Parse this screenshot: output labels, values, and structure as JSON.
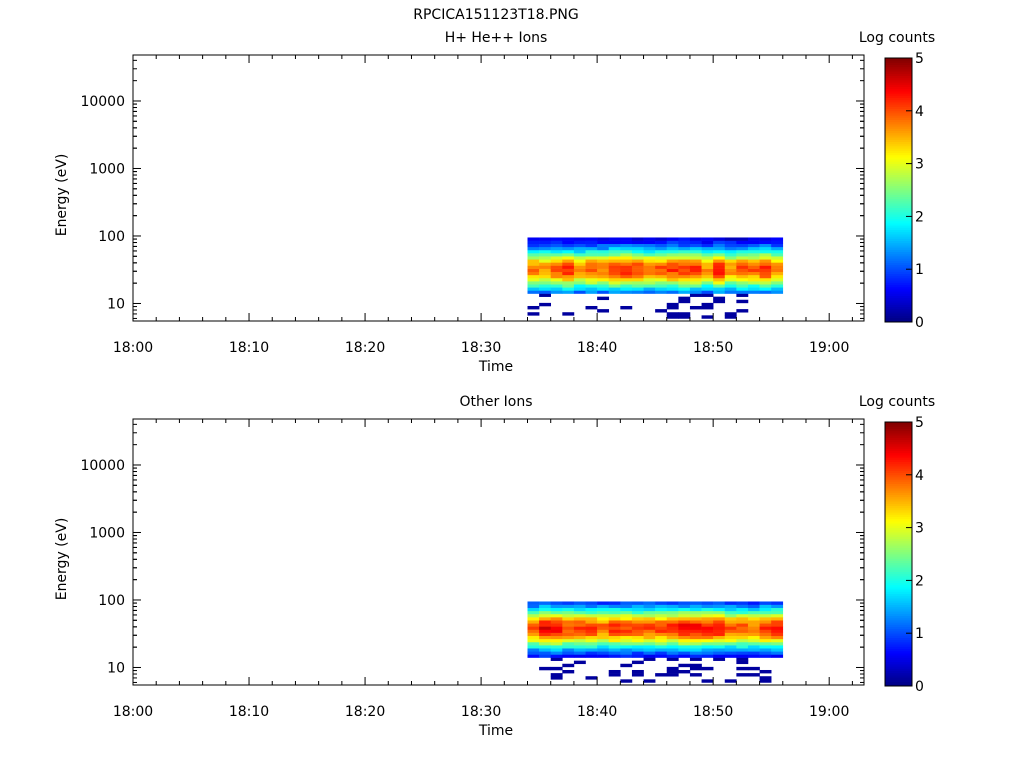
{
  "filename": "RPCICA151123T18.PNG",
  "chart_data": [
    {
      "type": "heatmap",
      "title": "H+ He++ Ions",
      "xlabel": "Time",
      "ylabel": "Energy (eV)",
      "y_scale": "log",
      "xlim": [
        "18:00",
        "19:03"
      ],
      "ylim": [
        5.5,
        48000
      ],
      "x_ticks": [
        "18:00",
        "18:10",
        "18:20",
        "18:30",
        "18:40",
        "18:50",
        "19:00"
      ],
      "y_ticks": [
        "10",
        "100",
        "1000",
        "10000"
      ],
      "colorbar": {
        "label": "Log counts",
        "range": [
          0,
          5
        ],
        "ticks": [
          "0",
          "1",
          "2",
          "3",
          "4",
          "5"
        ]
      },
      "data_extent": {
        "time_start": "18:34",
        "time_end": "18:56",
        "energy_min_eV": 6,
        "energy_max_eV": 95
      },
      "peak": {
        "energy_eV": 32,
        "log_counts": 4.3
      }
    },
    {
      "type": "heatmap",
      "title": "Other Ions",
      "xlabel": "Time",
      "ylabel": "Energy (eV)",
      "y_scale": "log",
      "xlim": [
        "18:00",
        "19:03"
      ],
      "ylim": [
        5.5,
        48000
      ],
      "x_ticks": [
        "18:00",
        "18:10",
        "18:20",
        "18:30",
        "18:40",
        "18:50",
        "19:00"
      ],
      "y_ticks": [
        "10",
        "100",
        "1000",
        "10000"
      ],
      "colorbar": {
        "label": "Log counts",
        "range": [
          0,
          5
        ],
        "ticks": [
          "0",
          "1",
          "2",
          "3",
          "4",
          "5"
        ]
      },
      "data_extent": {
        "time_start": "18:34",
        "time_end": "18:56",
        "energy_min_eV": 6,
        "energy_max_eV": 95
      },
      "peak": {
        "energy_eV": 38,
        "log_counts": 4.5
      }
    }
  ]
}
